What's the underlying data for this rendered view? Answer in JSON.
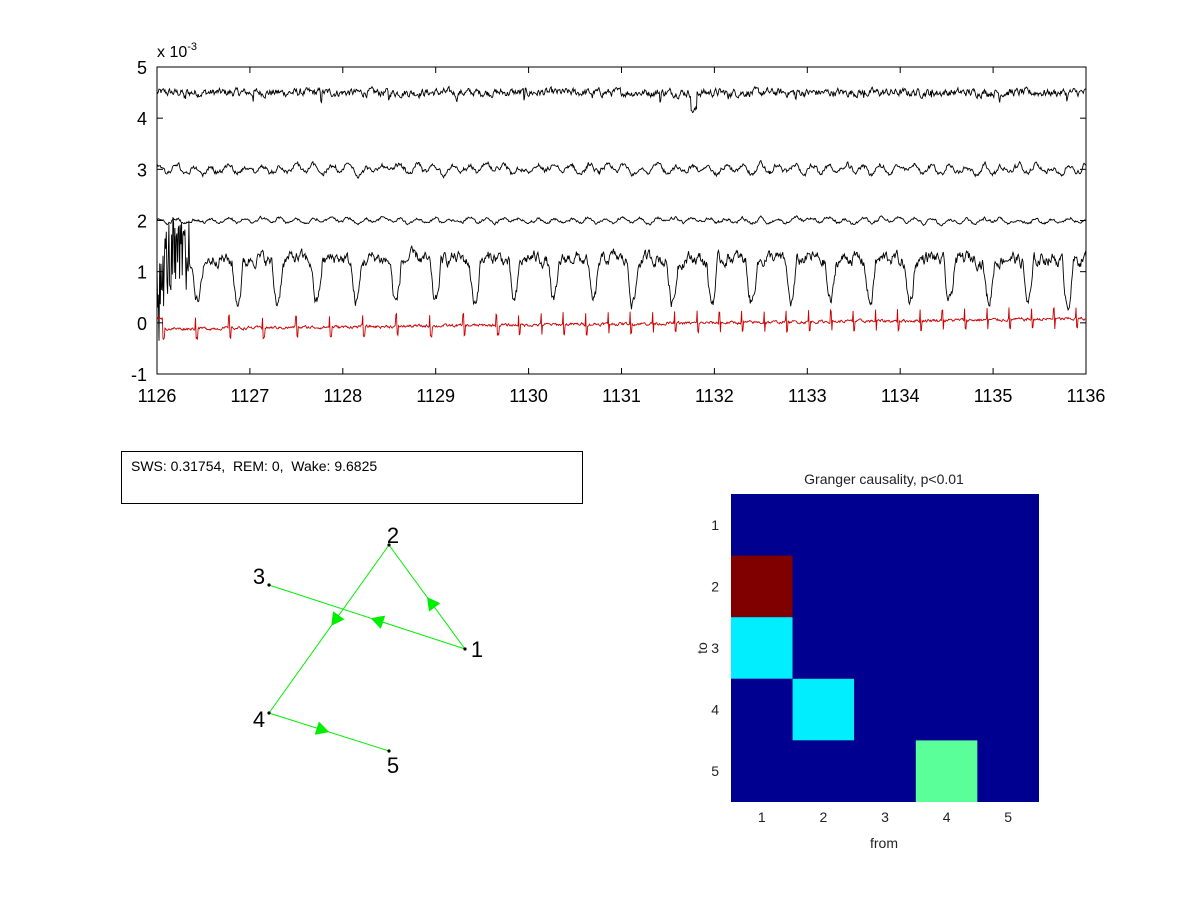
{
  "chart_data": [
    {
      "type": "line",
      "title": "",
      "exponent_label": "x 10",
      "exponent_power": "-3",
      "x_ticks": [
        "1126",
        "1127",
        "1128",
        "1129",
        "1130",
        "1131",
        "1132",
        "1133",
        "1134",
        "1135",
        "1136"
      ],
      "y_ticks": [
        "-1",
        "0",
        "1",
        "2",
        "3",
        "4",
        "5"
      ],
      "xlim": [
        1126,
        1136
      ],
      "ylim": [
        -1,
        5
      ],
      "series": [
        {
          "offset": 4.5,
          "amplitude": 0.09,
          "style": "fine",
          "color": "#000000"
        },
        {
          "offset": 3.0,
          "amplitude": 0.14,
          "style": "wavy",
          "color": "#000000"
        },
        {
          "offset": 2.0,
          "amplitude": 0.08,
          "style": "wavy",
          "color": "#000000"
        },
        {
          "offset": 1.0,
          "amplitude": 0.35,
          "style": "spiky",
          "color": "#000000"
        },
        {
          "offset": 0.0,
          "amplitude": 0.06,
          "style": "ecg",
          "color": "#cc0000"
        }
      ]
    },
    {
      "type": "table",
      "text": "SWS: 0.31754,  REM: 0,  Wake: 9.6825"
    },
    {
      "type": "diagram",
      "nodes": [
        {
          "label": "1"
        },
        {
          "label": "2"
        },
        {
          "label": "3"
        },
        {
          "label": "4"
        },
        {
          "label": "5"
        }
      ],
      "edges": [
        {
          "from": "1",
          "to": "3"
        },
        {
          "from": "1",
          "to": "2"
        },
        {
          "from": "2",
          "to": "4"
        },
        {
          "from": "4",
          "to": "5"
        }
      ],
      "edge_color": "#00ee00"
    },
    {
      "type": "heatmap",
      "title": "Granger causality, p<0.01",
      "xlabel": "from",
      "ylabel": "to",
      "x_ticks": [
        "1",
        "2",
        "3",
        "4",
        "5"
      ],
      "y_ticks": [
        "1",
        "2",
        "3",
        "4",
        "5"
      ],
      "matrix": [
        [
          0,
          0,
          0,
          0,
          0
        ],
        [
          1,
          0,
          0,
          0,
          0
        ],
        [
          0.45,
          0,
          0,
          0,
          0
        ],
        [
          0,
          0.45,
          0,
          0,
          0
        ],
        [
          0,
          0,
          0,
          0.6,
          0
        ]
      ],
      "colors": {
        "background": "#000090",
        "high": "#800000",
        "cyan": "#00eeff",
        "green": "#5aff9a"
      }
    }
  ]
}
